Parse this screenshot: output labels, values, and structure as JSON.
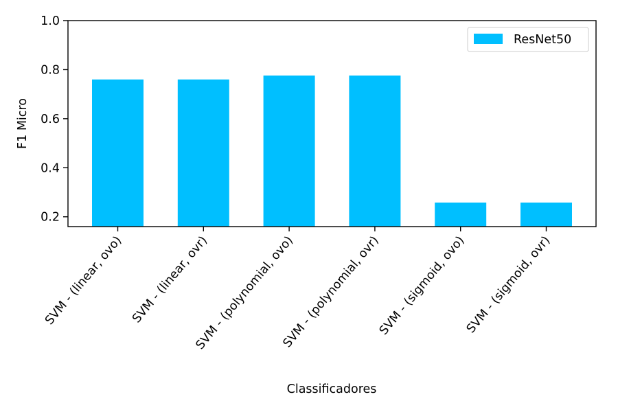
{
  "chart_data": {
    "type": "bar",
    "title": "",
    "xlabel": "Classificadores",
    "ylabel": "F1 Micro",
    "categories": [
      "SVM - (linear, ovo)",
      "SVM - (linear, ovr)",
      "SVM - (polynomial, ovo)",
      "SVM - (polynomial, ovr)",
      "SVM - (sigmoid, ovo)",
      "SVM - (sigmoid, ovr)"
    ],
    "series": [
      {
        "name": "ResNet50",
        "color": "#00bfff",
        "values": [
          0.76,
          0.76,
          0.776,
          0.776,
          0.258,
          0.258
        ]
      }
    ],
    "ylim": [
      0.16,
      1.0
    ],
    "yticks": [
      0.2,
      0.4,
      0.6,
      0.8,
      1.0
    ],
    "ytick_labels": [
      "0.2",
      "0.4",
      "0.6",
      "0.8",
      "1.0"
    ],
    "grid": false,
    "legend": "top-right"
  }
}
